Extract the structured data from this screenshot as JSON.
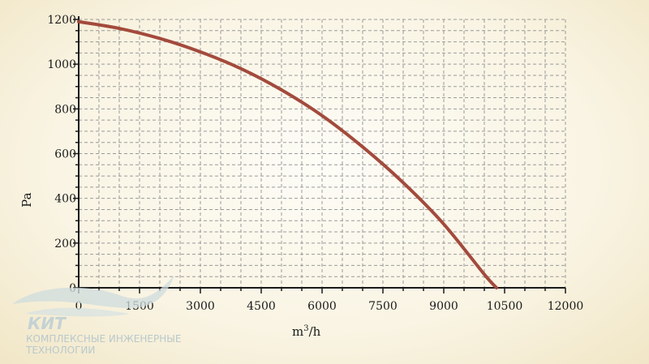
{
  "chart_data": {
    "type": "line",
    "title": "",
    "xlabel": "m³/h",
    "xlabel_parts": {
      "base": "m",
      "sup": "3",
      "rest": "/h"
    },
    "ylabel": "Pa",
    "xlim": [
      0,
      12000
    ],
    "ylim": [
      0,
      1200
    ],
    "x_ticks": [
      0,
      1500,
      3000,
      4500,
      6000,
      7500,
      9000,
      10500,
      12000
    ],
    "y_ticks": [
      0,
      200,
      400,
      600,
      800,
      1000,
      1200
    ],
    "grid": true,
    "legend": "none",
    "series": [
      {
        "color": "#a34a3c",
        "x": [
          0,
          1000,
          2000,
          3000,
          4000,
          5000,
          6000,
          7000,
          8000,
          9000,
          10000,
          10300
        ],
        "y": [
          1190,
          1160,
          1115,
          1055,
          980,
          885,
          770,
          630,
          470,
          285,
          60,
          0
        ]
      }
    ]
  },
  "watermark": {
    "title": "КИТ",
    "line1": "КОМПЛЕКСНЫЕ ИНЖЕНЕРНЫЕ",
    "line2": "ТЕХНОЛОГИИ"
  }
}
